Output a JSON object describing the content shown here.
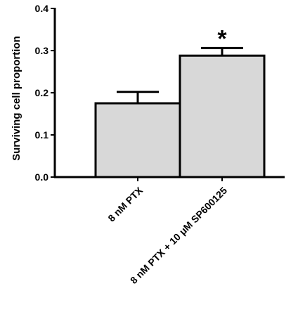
{
  "chart_data": {
    "type": "bar",
    "title": "",
    "xlabel": "",
    "ylabel": "Surviving cell proportion",
    "ylim": [
      0,
      0.4
    ],
    "yticks": [
      "0.0",
      "0.1",
      "0.2",
      "0.3",
      "0.4"
    ],
    "categories": [
      "8 nM PTX",
      "8 nM PTX + 10 μM SP600125"
    ],
    "values": [
      0.175,
      0.288
    ],
    "error_bars": [
      0.027,
      0.018
    ],
    "annotations": [
      "",
      "*"
    ],
    "grid": false,
    "colors": {
      "bar_fill": "#d8d8d8",
      "bar_edge": "#000000",
      "axis": "#000000"
    }
  }
}
